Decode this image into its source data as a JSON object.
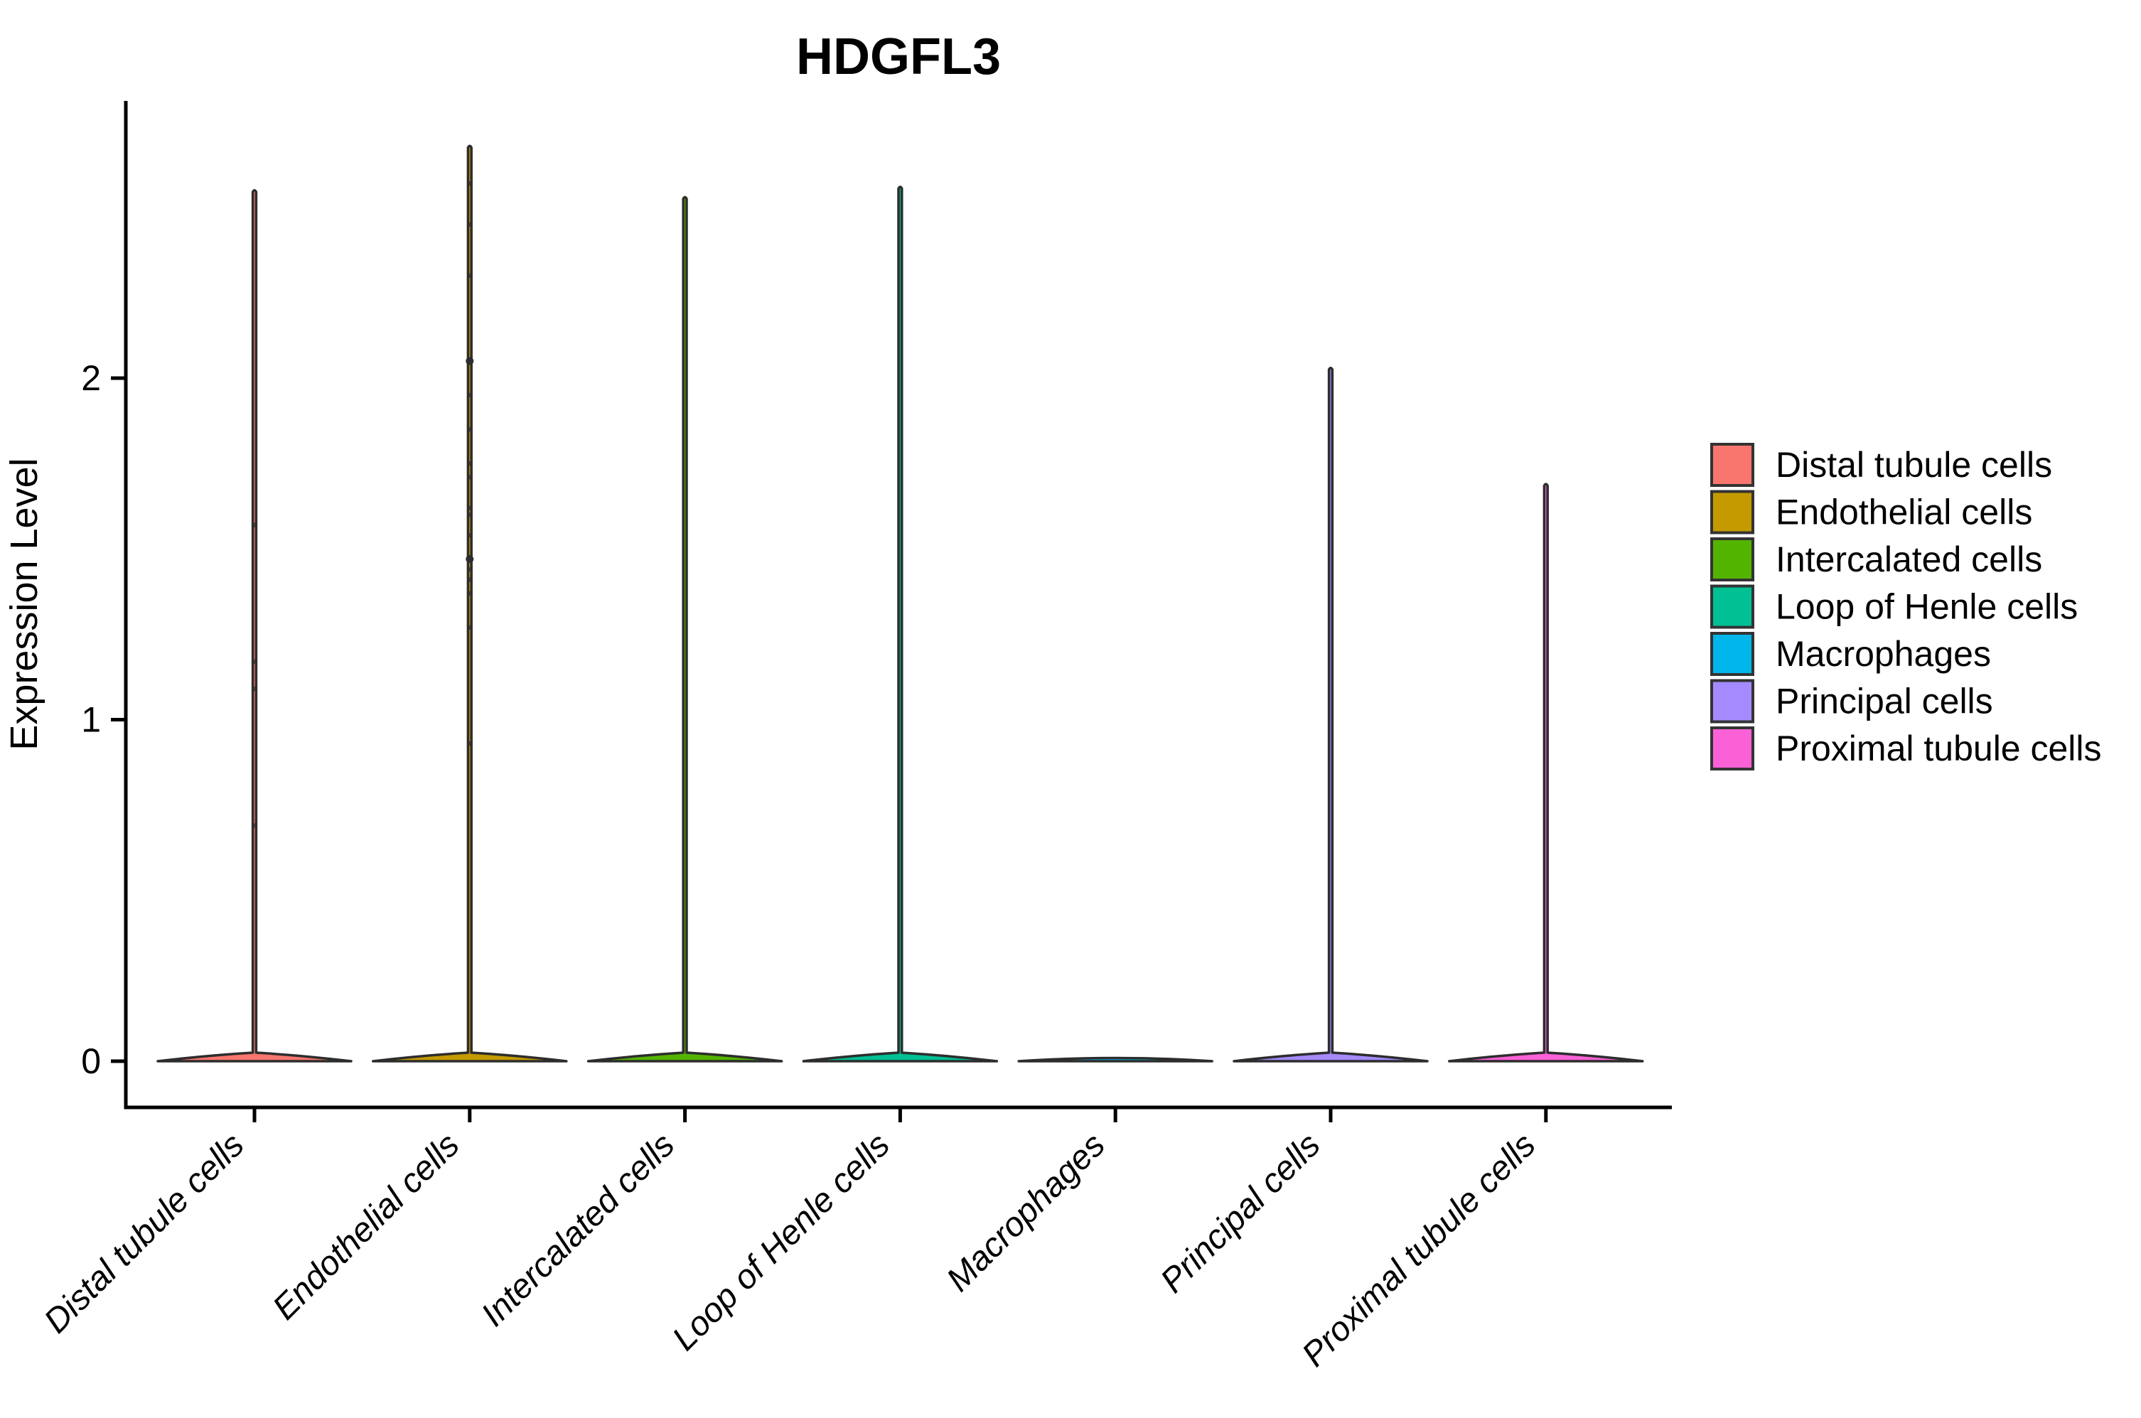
{
  "chart_data": {
    "type": "violin",
    "title": "HDGFL3",
    "ylabel": "Expression Level",
    "xlabel": "",
    "grid": false,
    "legend_position": "right",
    "x_tick_label_style": "italic, rotated 45 degrees",
    "yticks": [
      0,
      1,
      2
    ],
    "ylim": [
      -0.135,
      2.81
    ],
    "axis_color": "#000000",
    "outline_color": "#2D2D2D",
    "categories": [
      "Distal tubule cells",
      "Endothelial cells",
      "Intercalated cells",
      "Loop of Henle cells",
      "Macrophages",
      "Principal cells",
      "Proximal tubule cells"
    ],
    "series": [
      {
        "category": "Distal tubule cells",
        "color": "#F8766D",
        "density_peak_at": 0,
        "max_expression": 2.55,
        "outlier_points": [
          1.57,
          1.17,
          1.09,
          0.69
        ],
        "emphasis_points": []
      },
      {
        "category": "Endothelial cells",
        "color": "#C49A00",
        "density_peak_at": 0,
        "max_expression": 2.68,
        "outlier_points": [
          2.57,
          2.45,
          2.3,
          1.95,
          1.85,
          1.75,
          1.71,
          1.62,
          1.6,
          1.54,
          1.44,
          1.41,
          1.37,
          1.27,
          0.93
        ],
        "emphasis_points": [
          2.05,
          1.47
        ]
      },
      {
        "category": "Intercalated cells",
        "color": "#53B400",
        "density_peak_at": 0,
        "max_expression": 2.53,
        "outlier_points": [],
        "emphasis_points": []
      },
      {
        "category": "Loop of Henle cells",
        "color": "#00C094",
        "density_peak_at": 0,
        "max_expression": 2.56,
        "outlier_points": [],
        "emphasis_points": []
      },
      {
        "category": "Macrophages",
        "color": "#00B6EB",
        "density_peak_at": 0,
        "max_expression": 0.02,
        "outlier_points": [],
        "emphasis_points": []
      },
      {
        "category": "Principal cells",
        "color": "#A58AFF",
        "density_peak_at": 0,
        "max_expression": 2.03,
        "outlier_points": [],
        "emphasis_points": []
      },
      {
        "category": "Proximal tubule cells",
        "color": "#FB61D7",
        "density_peak_at": 0,
        "max_expression": 1.69,
        "outlier_points": [],
        "emphasis_points": []
      }
    ],
    "legend": [
      {
        "label": "Distal tubule cells",
        "color": "#F8766D"
      },
      {
        "label": "Endothelial cells",
        "color": "#C49A00"
      },
      {
        "label": "Intercalated cells",
        "color": "#53B400"
      },
      {
        "label": "Loop of Henle cells",
        "color": "#00C094"
      },
      {
        "label": "Macrophages",
        "color": "#00B6EB"
      },
      {
        "label": "Principal cells",
        "color": "#A58AFF"
      },
      {
        "label": "Proximal tubule cells",
        "color": "#FB61D7"
      }
    ]
  }
}
